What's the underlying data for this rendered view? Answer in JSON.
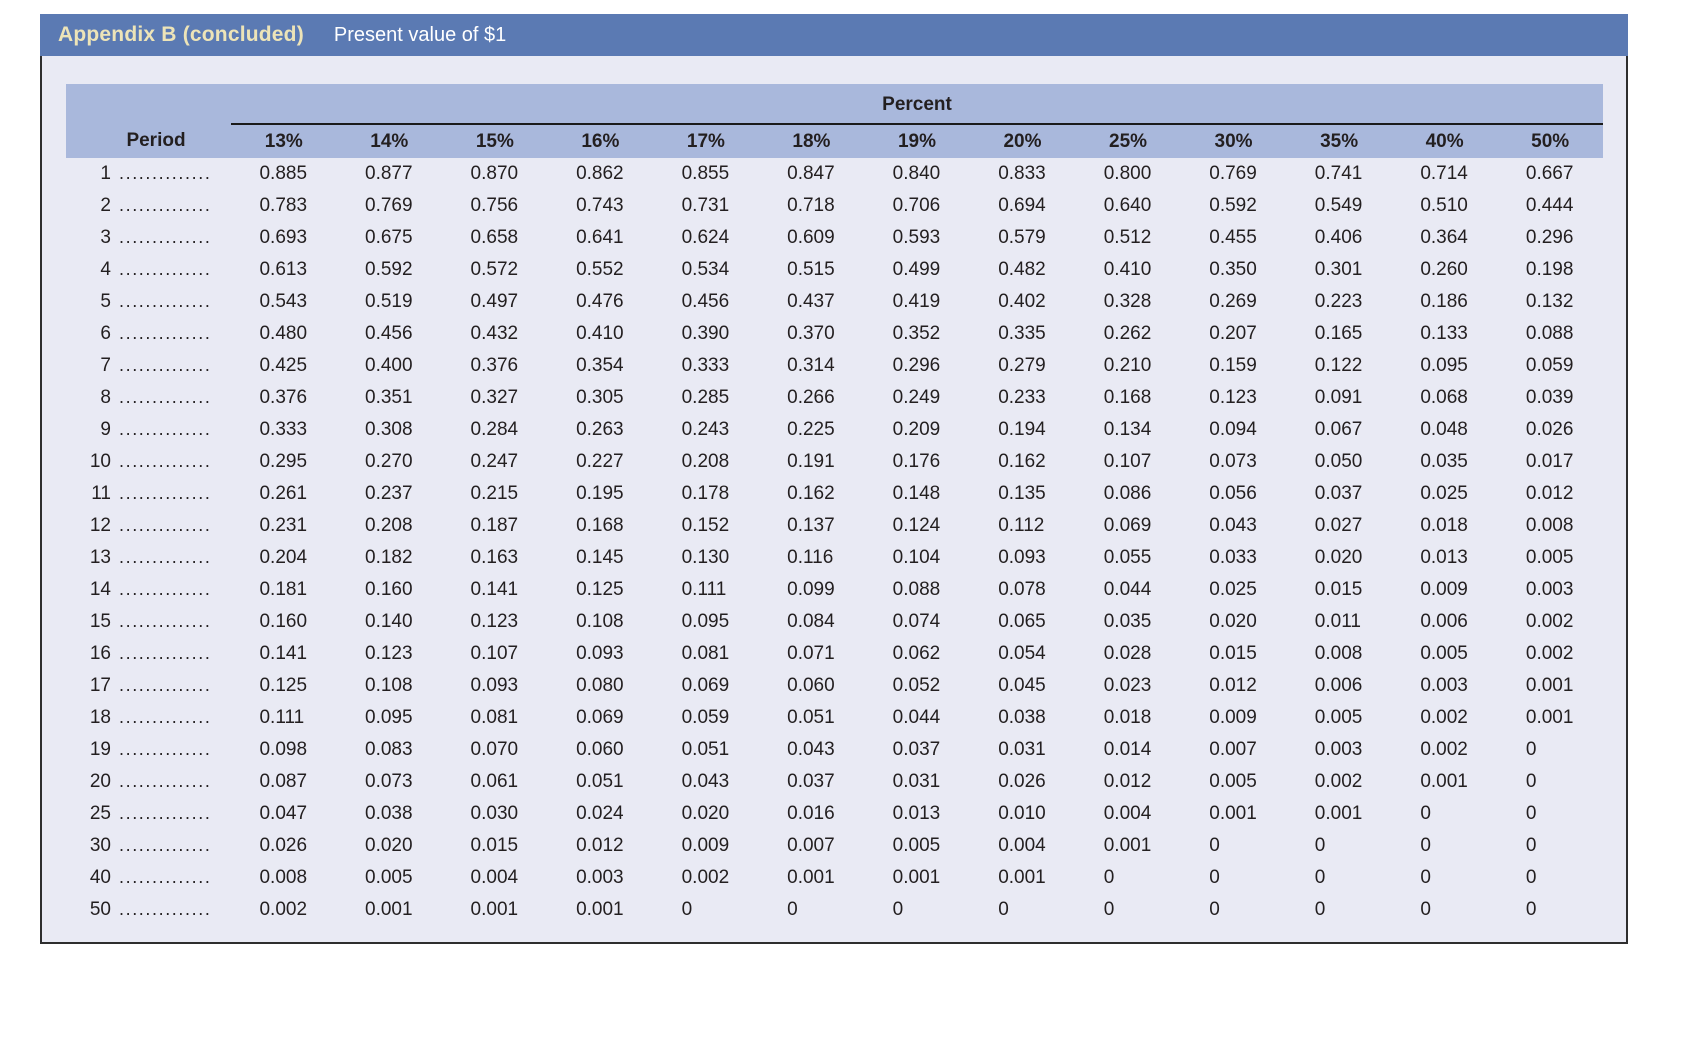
{
  "header": {
    "title": "Appendix B (concluded)",
    "subtitle": "Present value of $1"
  },
  "table": {
    "group_header": "Percent",
    "period_header": "Period",
    "dot_leader": "....................................",
    "columns": [
      "13%",
      "14%",
      "15%",
      "16%",
      "17%",
      "18%",
      "19%",
      "20%",
      "25%",
      "30%",
      "35%",
      "40%",
      "50%"
    ],
    "rows": [
      {
        "period": "1",
        "values": [
          "0.885",
          "0.877",
          "0.870",
          "0.862",
          "0.855",
          "0.847",
          "0.840",
          "0.833",
          "0.800",
          "0.769",
          "0.741",
          "0.714",
          "0.667"
        ]
      },
      {
        "period": "2",
        "values": [
          "0.783",
          "0.769",
          "0.756",
          "0.743",
          "0.731",
          "0.718",
          "0.706",
          "0.694",
          "0.640",
          "0.592",
          "0.549",
          "0.510",
          "0.444"
        ]
      },
      {
        "period": "3",
        "values": [
          "0.693",
          "0.675",
          "0.658",
          "0.641",
          "0.624",
          "0.609",
          "0.593",
          "0.579",
          "0.512",
          "0.455",
          "0.406",
          "0.364",
          "0.296"
        ]
      },
      {
        "period": "4",
        "values": [
          "0.613",
          "0.592",
          "0.572",
          "0.552",
          "0.534",
          "0.515",
          "0.499",
          "0.482",
          "0.410",
          "0.350",
          "0.301",
          "0.260",
          "0.198"
        ]
      },
      {
        "period": "5",
        "values": [
          "0.543",
          "0.519",
          "0.497",
          "0.476",
          "0.456",
          "0.437",
          "0.419",
          "0.402",
          "0.328",
          "0.269",
          "0.223",
          "0.186",
          "0.132"
        ]
      },
      {
        "period": "6",
        "values": [
          "0.480",
          "0.456",
          "0.432",
          "0.410",
          "0.390",
          "0.370",
          "0.352",
          "0.335",
          "0.262",
          "0.207",
          "0.165",
          "0.133",
          "0.088"
        ]
      },
      {
        "period": "7",
        "values": [
          "0.425",
          "0.400",
          "0.376",
          "0.354",
          "0.333",
          "0.314",
          "0.296",
          "0.279",
          "0.210",
          "0.159",
          "0.122",
          "0.095",
          "0.059"
        ]
      },
      {
        "period": "8",
        "values": [
          "0.376",
          "0.351",
          "0.327",
          "0.305",
          "0.285",
          "0.266",
          "0.249",
          "0.233",
          "0.168",
          "0.123",
          "0.091",
          "0.068",
          "0.039"
        ]
      },
      {
        "period": "9",
        "values": [
          "0.333",
          "0.308",
          "0.284",
          "0.263",
          "0.243",
          "0.225",
          "0.209",
          "0.194",
          "0.134",
          "0.094",
          "0.067",
          "0.048",
          "0.026"
        ]
      },
      {
        "period": "10",
        "values": [
          "0.295",
          "0.270",
          "0.247",
          "0.227",
          "0.208",
          "0.191",
          "0.176",
          "0.162",
          "0.107",
          "0.073",
          "0.050",
          "0.035",
          "0.017"
        ]
      },
      {
        "period": "11",
        "values": [
          "0.261",
          "0.237",
          "0.215",
          "0.195",
          "0.178",
          "0.162",
          "0.148",
          "0.135",
          "0.086",
          "0.056",
          "0.037",
          "0.025",
          "0.012"
        ]
      },
      {
        "period": "12",
        "values": [
          "0.231",
          "0.208",
          "0.187",
          "0.168",
          "0.152",
          "0.137",
          "0.124",
          "0.112",
          "0.069",
          "0.043",
          "0.027",
          "0.018",
          "0.008"
        ]
      },
      {
        "period": "13",
        "values": [
          "0.204",
          "0.182",
          "0.163",
          "0.145",
          "0.130",
          "0.116",
          "0.104",
          "0.093",
          "0.055",
          "0.033",
          "0.020",
          "0.013",
          "0.005"
        ]
      },
      {
        "period": "14",
        "values": [
          "0.181",
          "0.160",
          "0.141",
          "0.125",
          "0.111",
          "0.099",
          "0.088",
          "0.078",
          "0.044",
          "0.025",
          "0.015",
          "0.009",
          "0.003"
        ]
      },
      {
        "period": "15",
        "values": [
          "0.160",
          "0.140",
          "0.123",
          "0.108",
          "0.095",
          "0.084",
          "0.074",
          "0.065",
          "0.035",
          "0.020",
          "0.011",
          "0.006",
          "0.002"
        ]
      },
      {
        "period": "16",
        "values": [
          "0.141",
          "0.123",
          "0.107",
          "0.093",
          "0.081",
          "0.071",
          "0.062",
          "0.054",
          "0.028",
          "0.015",
          "0.008",
          "0.005",
          "0.002"
        ]
      },
      {
        "period": "17",
        "values": [
          "0.125",
          "0.108",
          "0.093",
          "0.080",
          "0.069",
          "0.060",
          "0.052",
          "0.045",
          "0.023",
          "0.012",
          "0.006",
          "0.003",
          "0.001"
        ]
      },
      {
        "period": "18",
        "values": [
          "0.111",
          "0.095",
          "0.081",
          "0.069",
          "0.059",
          "0.051",
          "0.044",
          "0.038",
          "0.018",
          "0.009",
          "0.005",
          "0.002",
          "0.001"
        ]
      },
      {
        "period": "19",
        "values": [
          "0.098",
          "0.083",
          "0.070",
          "0.060",
          "0.051",
          "0.043",
          "0.037",
          "0.031",
          "0.014",
          "0.007",
          "0.003",
          "0.002",
          "0"
        ]
      },
      {
        "period": "20",
        "values": [
          "0.087",
          "0.073",
          "0.061",
          "0.051",
          "0.043",
          "0.037",
          "0.031",
          "0.026",
          "0.012",
          "0.005",
          "0.002",
          "0.001",
          "0"
        ]
      },
      {
        "period": "25",
        "values": [
          "0.047",
          "0.038",
          "0.030",
          "0.024",
          "0.020",
          "0.016",
          "0.013",
          "0.010",
          "0.004",
          "0.001",
          "0.001",
          "0",
          "0"
        ]
      },
      {
        "period": "30",
        "values": [
          "0.026",
          "0.020",
          "0.015",
          "0.012",
          "0.009",
          "0.007",
          "0.005",
          "0.004",
          "0.001",
          "0",
          "0",
          "0",
          "0"
        ]
      },
      {
        "period": "40",
        "values": [
          "0.008",
          "0.005",
          "0.004",
          "0.003",
          "0.002",
          "0.001",
          "0.001",
          "0.001",
          "0",
          "0",
          "0",
          "0",
          "0"
        ]
      },
      {
        "period": "50",
        "values": [
          "0.002",
          "0.001",
          "0.001",
          "0.001",
          "0",
          "0",
          "0",
          "0",
          "0",
          "0",
          "0",
          "0",
          "0"
        ]
      }
    ]
  },
  "colors": {
    "title_bar": "#5b7ab3",
    "title_text": "#ede4b8",
    "subtitle_text": "#ffffff",
    "header_band": "#a9b8dc",
    "panel_bg": "#e9eaf4",
    "text": "#231f20",
    "border": "#2e2e2e",
    "rule": "#1a1a1a"
  }
}
